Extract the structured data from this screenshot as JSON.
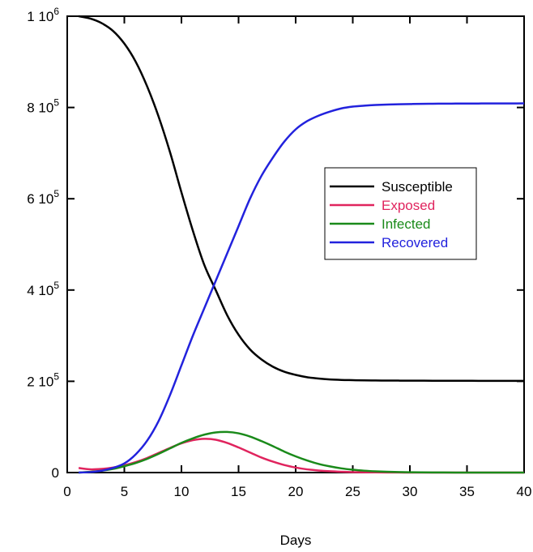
{
  "chart_data": {
    "type": "line",
    "xlabel": "Days",
    "ylabel": "",
    "xlim": [
      0,
      40
    ],
    "ylim": [
      0,
      1000000
    ],
    "x_ticks": [
      0,
      5,
      10,
      15,
      20,
      25,
      30,
      35,
      40
    ],
    "y_ticks": [
      {
        "value": 0,
        "mantissa": "0",
        "exp": ""
      },
      {
        "value": 200000,
        "mantissa": "2 10",
        "exp": "5"
      },
      {
        "value": 400000,
        "mantissa": "4 10",
        "exp": "5"
      },
      {
        "value": 600000,
        "mantissa": "6 10",
        "exp": "5"
      },
      {
        "value": 800000,
        "mantissa": "8 10",
        "exp": "5"
      },
      {
        "value": 1000000,
        "mantissa": "1 10",
        "exp": "6"
      }
    ],
    "grid": false,
    "legend_position": "center-right",
    "x": [
      1,
      2,
      3,
      4,
      5,
      6,
      7,
      8,
      9,
      10,
      11,
      12,
      13,
      14,
      15,
      16,
      17,
      18,
      19,
      20,
      21,
      22,
      23,
      24,
      25,
      26,
      27,
      28,
      29,
      30,
      31,
      32,
      33,
      34,
      35,
      36,
      37,
      38,
      39,
      40
    ],
    "series": [
      {
        "name": "Susceptible",
        "color": "#000000",
        "values": [
          1000000,
          995000,
          985000,
          968000,
          940000,
          900000,
          846000,
          780000,
          702000,
          614000,
          530000,
          455000,
          400000,
          345000,
          302000,
          270000,
          248000,
          232000,
          221000,
          214000,
          209000,
          206000,
          204000,
          203000,
          202500,
          202000,
          201800,
          201600,
          201500,
          201400,
          201300,
          201200,
          201200,
          201100,
          201100,
          201000,
          201000,
          201000,
          201000,
          201000
        ]
      },
      {
        "name": "Exposed",
        "color": "#e0245e",
        "values": [
          10000,
          7000,
          8000,
          11000,
          16000,
          23000,
          32000,
          43000,
          54000,
          64000,
          71000,
          74000,
          72000,
          65000,
          55000,
          44000,
          33000,
          24000,
          16500,
          11000,
          7000,
          4500,
          2800,
          1700,
          1000,
          600,
          350,
          200,
          120,
          70,
          40,
          20,
          10,
          5,
          3,
          2,
          1,
          0,
          0,
          0
        ]
      },
      {
        "name": "Infected",
        "color": "#1a8a1a",
        "values": [
          0,
          1500,
          4000,
          8000,
          14000,
          21000,
          30000,
          41000,
          53000,
          65000,
          75000,
          83000,
          88000,
          89000,
          86000,
          79000,
          69000,
          58000,
          46000,
          35500,
          26500,
          19000,
          13500,
          9200,
          6200,
          4100,
          2700,
          1700,
          1100,
          700,
          450,
          280,
          170,
          110,
          70,
          40,
          25,
          15,
          10,
          5
        ]
      },
      {
        "name": "Recovered",
        "color": "#2222dd",
        "values": [
          0,
          1000,
          4000,
          10000,
          20000,
          40000,
          70000,
          113000,
          170000,
          235000,
          300000,
          360000,
          420000,
          480000,
          540000,
          600000,
          650000,
          690000,
          725000,
          752000,
          770000,
          782000,
          791000,
          798000,
          802000,
          804000,
          805500,
          806500,
          807000,
          807500,
          808000,
          808200,
          808400,
          808500,
          808600,
          808700,
          808800,
          808800,
          808900,
          809000
        ]
      }
    ]
  }
}
